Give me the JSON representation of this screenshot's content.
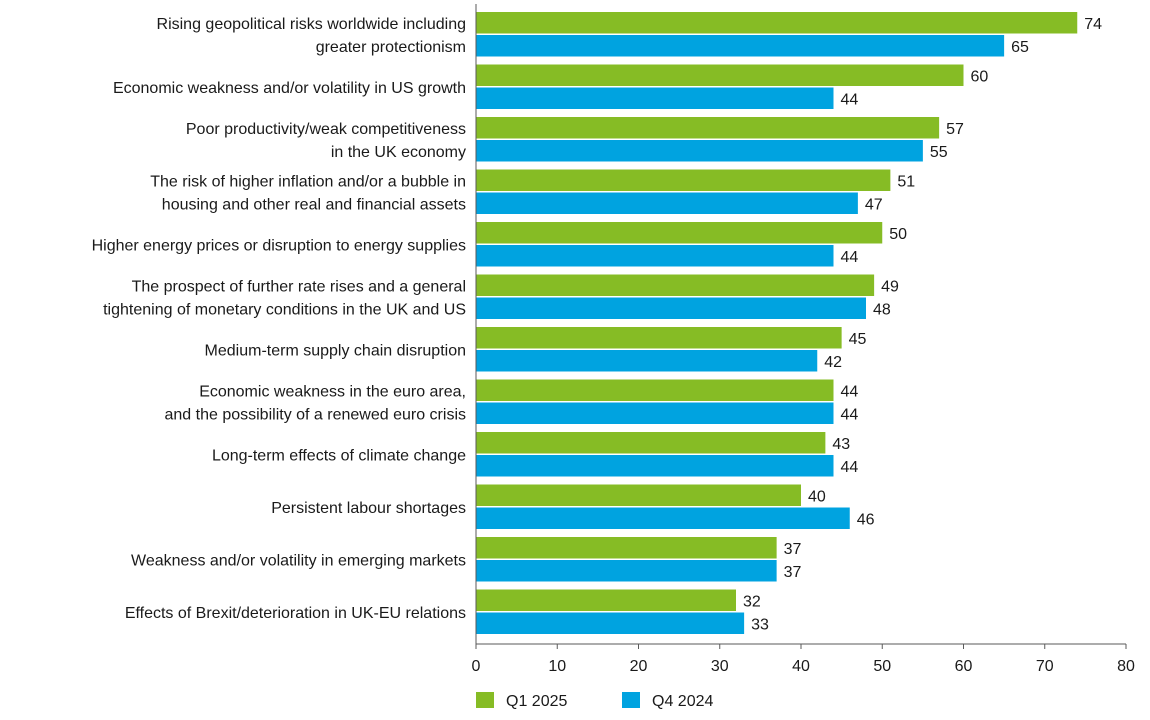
{
  "chart_data": {
    "type": "bar",
    "orientation": "horizontal",
    "categories": [
      [
        "Rising geopolitical risks worldwide including",
        "greater protectionism"
      ],
      [
        "Economic weakness and/or volatility in US growth"
      ],
      [
        "Poor productivity/weak competitiveness",
        "in the UK economy"
      ],
      [
        "The risk of higher inflation and/or a bubble in",
        "housing and other real and financial assets"
      ],
      [
        "Higher energy prices or disruption to energy supplies"
      ],
      [
        "The prospect of further rate rises and a general",
        "tightening of monetary conditions in the UK and US"
      ],
      [
        "Medium-term supply chain disruption"
      ],
      [
        "Economic weakness in the euro area,",
        "and the possibility of a renewed euro crisis"
      ],
      [
        "Long-term effects of climate change"
      ],
      [
        "Persistent labour shortages"
      ],
      [
        "Weakness and/or volatility in emerging markets"
      ],
      [
        "Effects of Brexit/deterioration in UK-EU relations"
      ]
    ],
    "series": [
      {
        "name": "Q1 2025",
        "color": "#86bc25",
        "values": [
          74,
          60,
          57,
          51,
          50,
          49,
          45,
          44,
          43,
          40,
          37,
          32
        ]
      },
      {
        "name": "Q4 2024",
        "color": "#00a3e0",
        "values": [
          65,
          44,
          55,
          47,
          44,
          48,
          42,
          44,
          44,
          46,
          37,
          33
        ]
      }
    ],
    "xlim": [
      0,
      80
    ],
    "xticks": [
      "0",
      "10",
      "20",
      "30",
      "40",
      "50",
      "60",
      "70",
      "80"
    ],
    "title": "",
    "xlabel": "",
    "ylabel": "",
    "grid": false,
    "legend_position": "bottom"
  }
}
